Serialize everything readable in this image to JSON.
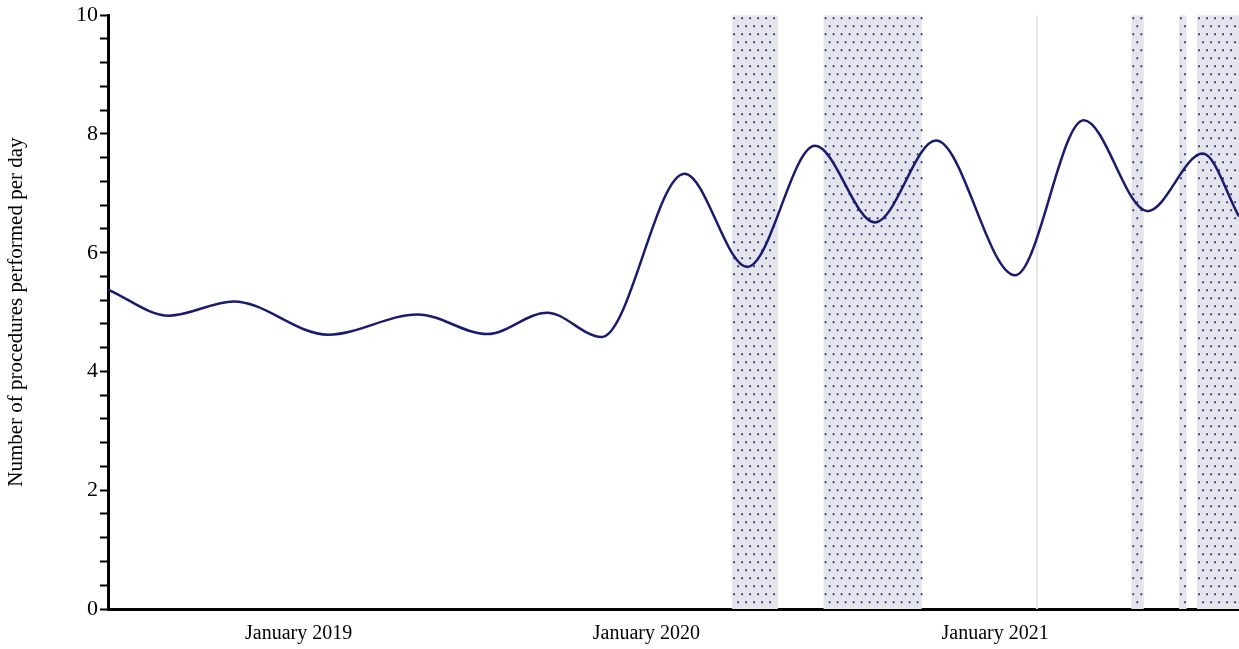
{
  "chart_data": {
    "type": "line",
    "ylabel": "Number of procedures performed per day",
    "xlim": [
      "2018-06-15",
      "2021-09-14"
    ],
    "xticks": [
      {
        "value": "2019-01-01",
        "label": "January 2019"
      },
      {
        "value": "2020-01-01",
        "label": "January 2020"
      },
      {
        "value": "2021-01-01",
        "label": "January 2021"
      }
    ],
    "ylim": [
      0,
      10
    ],
    "yticks": [
      0,
      {
        "value": 0.4,
        "label": null
      },
      {
        "value": 0.8,
        "label": null
      },
      {
        "value": 1.2,
        "label": null
      },
      {
        "value": 1.6,
        "label": null
      },
      2,
      {
        "value": 2.4,
        "label": null
      },
      {
        "value": 2.8,
        "label": null
      },
      {
        "value": 3.2,
        "label": null
      },
      {
        "value": 3.6,
        "label": null
      },
      4,
      {
        "value": 4.4,
        "label": null
      },
      {
        "value": 4.8,
        "label": null
      },
      {
        "value": 5.2,
        "label": null
      },
      {
        "value": 5.6,
        "label": null
      },
      6,
      {
        "value": 6.4,
        "label": null
      },
      {
        "value": 6.8,
        "label": null
      },
      {
        "value": 7.2,
        "label": null
      },
      {
        "value": 7.6,
        "label": null
      },
      8,
      {
        "value": 8.4,
        "label": null
      },
      {
        "value": 8.8,
        "label": null
      },
      {
        "value": 9.2,
        "label": null
      },
      {
        "value": 9.6,
        "label": null
      },
      10
    ],
    "grid": false,
    "legend": false,
    "marker": "none",
    "line_style": "solid",
    "x": [
      "2018-06-15",
      "2018-08-18",
      "2018-10-25",
      "2019-02-01",
      "2019-05-06",
      "2019-07-18",
      "2019-09-19",
      "2019-11-15",
      "2020-02-10",
      "2020-04-16",
      "2020-06-26",
      "2020-08-28",
      "2020-10-31",
      "2021-01-22",
      "2021-04-04",
      "2021-06-10",
      "2021-08-07",
      "2021-09-14"
    ],
    "series": [
      {
        "color": "#1a1a6e",
        "values": [
          5.38,
          4.94,
          5.18,
          4.62,
          4.96,
          4.63,
          4.99,
          4.58,
          7.33,
          5.76,
          7.8,
          6.51,
          7.89,
          5.62,
          8.23,
          6.7,
          7.67,
          6.61
        ]
      }
    ],
    "bands": [
      {
        "axis": "x",
        "from": "2020-03-31",
        "to": "2020-05-18",
        "color": "#e4e4ec"
      },
      {
        "axis": "x",
        "from": "2020-07-05",
        "to": "2020-10-16",
        "color": "#e4e4ec"
      },
      {
        "axis": "x",
        "from": "2021-02-13",
        "to": "2021-02-15",
        "color": "#e4e4ec"
      },
      {
        "axis": "x",
        "from": "2021-05-24",
        "to": "2021-06-06",
        "color": "#e4e4ec"
      },
      {
        "axis": "x",
        "from": "2021-07-13",
        "to": "2021-07-21",
        "color": "#e4e4ec"
      },
      {
        "axis": "x",
        "from": "2021-08-01",
        "to": "2021-09-14",
        "color": "#e4e4ec"
      }
    ]
  }
}
